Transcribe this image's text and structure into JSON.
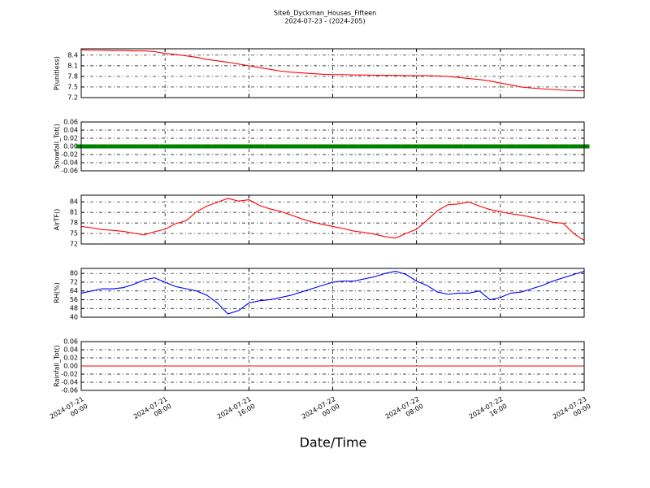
{
  "title": "Site6_Dyckman_Houses_Fifteen",
  "subtitle": "2024-07-23 - (2024-205)",
  "xlabel": "Date/Time",
  "xlim": [
    "2024-07-21 00:00",
    "2024-07-23 00:00"
  ],
  "xticks": [
    "2024-07-21 00:00",
    "2024-07-21 08:00",
    "2024-07-21 16:00",
    "2024-07-22 00:00",
    "2024-07-22 08:00",
    "2024-07-22 16:00",
    "2024-07-23 00:00"
  ],
  "x": [
    "2024-07-21 00:00",
    "2024-07-21 01:00",
    "2024-07-21 02:00",
    "2024-07-21 03:00",
    "2024-07-21 04:00",
    "2024-07-21 05:00",
    "2024-07-21 06:00",
    "2024-07-21 07:00",
    "2024-07-21 08:00",
    "2024-07-21 09:00",
    "2024-07-21 10:00",
    "2024-07-21 11:00",
    "2024-07-21 12:00",
    "2024-07-21 13:00",
    "2024-07-21 14:00",
    "2024-07-21 15:00",
    "2024-07-21 16:00",
    "2024-07-21 17:00",
    "2024-07-21 18:00",
    "2024-07-21 19:00",
    "2024-07-21 20:00",
    "2024-07-21 21:00",
    "2024-07-21 22:00",
    "2024-07-21 23:00",
    "2024-07-22 00:00",
    "2024-07-22 01:00",
    "2024-07-22 02:00",
    "2024-07-22 03:00",
    "2024-07-22 04:00",
    "2024-07-22 05:00",
    "2024-07-22 06:00",
    "2024-07-22 07:00",
    "2024-07-22 08:00",
    "2024-07-22 09:00",
    "2024-07-22 10:00",
    "2024-07-22 11:00",
    "2024-07-22 12:00",
    "2024-07-22 13:00",
    "2024-07-22 14:00",
    "2024-07-22 15:00",
    "2024-07-22 16:00",
    "2024-07-22 17:00",
    "2024-07-22 18:00",
    "2024-07-22 19:00",
    "2024-07-22 20:00",
    "2024-07-22 21:00",
    "2024-07-22 22:00",
    "2024-07-22 23:00",
    "2024-07-23 00:00"
  ],
  "chart_data": [
    {
      "type": "line",
      "ylabel": "P(unitless)",
      "color": "#ff0000",
      "ylim": [
        7.2,
        8.58
      ],
      "yticks": [
        7.2,
        7.5,
        7.8,
        8.1,
        8.4
      ],
      "grid": true,
      "values": [
        8.55,
        8.54,
        8.54,
        8.53,
        8.53,
        8.52,
        8.52,
        8.5,
        8.45,
        8.42,
        8.38,
        8.34,
        8.28,
        8.24,
        8.2,
        8.15,
        8.1,
        8.05,
        8.0,
        7.95,
        7.92,
        7.9,
        7.88,
        7.86,
        7.85,
        7.85,
        7.84,
        7.84,
        7.83,
        7.83,
        7.83,
        7.82,
        7.82,
        7.82,
        7.81,
        7.8,
        7.77,
        7.74,
        7.71,
        7.67,
        7.61,
        7.56,
        7.5,
        7.47,
        7.45,
        7.43,
        7.41,
        7.4,
        7.39
      ]
    },
    {
      "type": "scatter",
      "ylabel": "Snowfall_Tot()",
      "color": "#008000",
      "ylim": [
        -0.06,
        0.06
      ],
      "grid": true,
      "yticks": [
        -0.06,
        -0.04,
        -0.02,
        {
          "value": 0,
          "label": "0.00"
        },
        0.02,
        0.04,
        0.06
      ],
      "values": [
        0,
        0,
        0,
        0,
        0,
        0,
        0,
        0,
        0,
        0,
        0,
        0,
        0,
        0,
        0,
        0,
        0,
        0,
        0,
        0,
        0,
        0,
        0,
        0,
        0,
        0,
        0,
        0,
        0,
        0,
        0,
        0,
        0,
        0,
        0,
        0,
        0,
        0,
        0,
        0,
        0,
        0,
        0,
        0,
        0,
        0,
        0,
        0,
        0
      ]
    },
    {
      "type": "line",
      "ylabel": "AirTF()",
      "color": "#ff0000",
      "ylim": [
        72,
        85.9
      ],
      "yticks": [
        72,
        75,
        78,
        81,
        84
      ],
      "grid": true,
      "values": [
        77,
        76.6,
        76.1,
        75.9,
        75.6,
        75.1,
        74.6,
        75.5,
        76.2,
        77.8,
        78.6,
        81.2,
        82.8,
        83.9,
        85,
        84.2,
        84.6,
        83,
        82,
        81.3,
        80.3,
        79.2,
        78.3,
        77.6,
        77,
        76.4,
        75.7,
        75.3,
        74.8,
        74.1,
        73.7,
        75,
        76.2,
        78.8,
        81.5,
        83.2,
        83.4,
        84,
        82.8,
        81.8,
        81.2,
        80.6,
        80.2,
        79.6,
        79,
        78.2,
        77.9,
        75,
        73
      ]
    },
    {
      "type": "line",
      "ylabel": "RH(%)",
      "color": "#0000ff",
      "ylim": [
        40,
        84.6
      ],
      "yticks": [
        40,
        48,
        56,
        64,
        72,
        80
      ],
      "grid": true,
      "values": [
        62,
        64,
        66,
        66,
        67,
        70,
        74,
        76,
        72,
        68,
        66,
        64,
        60,
        53,
        43,
        46,
        53,
        55,
        56,
        58,
        60,
        63,
        66,
        69,
        72,
        73,
        73,
        75,
        77,
        80,
        82,
        79,
        73,
        69,
        63,
        61,
        62,
        62,
        64,
        56,
        58,
        62,
        63,
        66,
        69,
        73,
        76,
        79,
        82
      ]
    },
    {
      "type": "line",
      "ylabel": "Rainfall_Tot()",
      "color": "#ff0000",
      "ylim": [
        -0.06,
        0.06
      ],
      "grid": true,
      "yticks": [
        -0.06,
        -0.04,
        -0.02,
        {
          "value": 0,
          "label": "0.00"
        },
        0.02,
        0.04,
        0.06
      ],
      "values": [
        0,
        0,
        0,
        0,
        0,
        0,
        0,
        0,
        0,
        0,
        0,
        0,
        0,
        0,
        0,
        0,
        0,
        0,
        0,
        0,
        0,
        0,
        0,
        0,
        0,
        0,
        0,
        0,
        0,
        0,
        0,
        0,
        0,
        0,
        0,
        0,
        0,
        0,
        0,
        0,
        0,
        0,
        0,
        0,
        0,
        0,
        0,
        0,
        0
      ]
    }
  ]
}
